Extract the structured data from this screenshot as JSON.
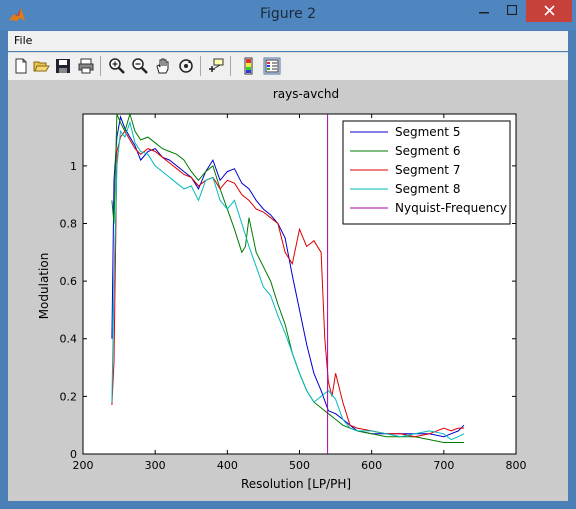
{
  "window": {
    "title": "Figure 2",
    "minimize_icon": "minimize-icon",
    "maximize_icon": "maximize-icon",
    "close_icon": "close-icon"
  },
  "menu": {
    "file": "File"
  },
  "toolbar": {
    "icons": [
      "new-figure-icon",
      "open-file-icon",
      "save-icon",
      "print-icon",
      "zoom-in-icon",
      "zoom-out-icon",
      "pan-hand-icon",
      "rotate-3d-icon",
      "data-cursor-icon",
      "colorbar-icon",
      "legend-icon"
    ]
  },
  "chart_data": {
    "type": "line",
    "title": "rays-avchd",
    "xlabel": "Resolution [LP/PH]",
    "ylabel": "Modulation",
    "xlim": [
      200,
      800
    ],
    "ylim": [
      0,
      1.18
    ],
    "xticks": [
      200,
      300,
      400,
      500,
      600,
      700,
      800
    ],
    "yticks": [
      0,
      0.2,
      0.4,
      0.6,
      0.8,
      1
    ],
    "ytick_labels": [
      "0",
      "0.2",
      "0.4",
      "0.6",
      "0.8",
      "1"
    ],
    "grid": false,
    "legend_position": "top-right",
    "series": [
      {
        "name": "Segment 5",
        "color": "#0000cc",
        "x": [
          240,
          243,
          247,
          252,
          258,
          265,
          272,
          280,
          290,
          300,
          310,
          320,
          330,
          340,
          350,
          360,
          370,
          380,
          390,
          400,
          410,
          420,
          430,
          440,
          450,
          460,
          470,
          480,
          490,
          500,
          510,
          520,
          530,
          540,
          550,
          560,
          570,
          580,
          600,
          620,
          640,
          660,
          680,
          700,
          710,
          720,
          728
        ],
        "y": [
          0.4,
          0.95,
          1.1,
          1.17,
          1.13,
          1.1,
          1.07,
          1.02,
          1.05,
          1.06,
          1.03,
          1.02,
          1.0,
          0.98,
          0.96,
          0.92,
          0.98,
          1.02,
          0.95,
          0.98,
          0.99,
          0.94,
          0.92,
          0.88,
          0.85,
          0.83,
          0.8,
          0.75,
          0.62,
          0.5,
          0.38,
          0.28,
          0.22,
          0.15,
          0.14,
          0.12,
          0.1,
          0.08,
          0.07,
          0.07,
          0.07,
          0.07,
          0.07,
          0.06,
          0.07,
          0.08,
          0.1
        ]
      },
      {
        "name": "Segment 6",
        "color": "#007a00",
        "x": [
          240,
          243,
          247,
          252,
          258,
          265,
          272,
          280,
          290,
          300,
          310,
          320,
          330,
          340,
          350,
          360,
          370,
          380,
          390,
          400,
          410,
          420,
          425,
          430,
          440,
          450,
          460,
          470,
          480,
          490,
          500,
          510,
          520,
          530,
          540,
          550,
          560,
          570,
          580,
          600,
          620,
          640,
          660,
          680,
          700,
          710,
          720,
          728
        ],
        "y": [
          0.88,
          0.8,
          1.2,
          1.15,
          1.12,
          1.18,
          1.12,
          1.09,
          1.1,
          1.08,
          1.06,
          1.05,
          1.04,
          1.02,
          0.98,
          0.95,
          0.98,
          1.0,
          0.92,
          0.85,
          0.78,
          0.7,
          0.72,
          0.82,
          0.7,
          0.65,
          0.6,
          0.52,
          0.45,
          0.35,
          0.28,
          0.22,
          0.18,
          0.16,
          0.14,
          0.12,
          0.1,
          0.09,
          0.08,
          0.07,
          0.06,
          0.06,
          0.06,
          0.05,
          0.04,
          0.04,
          0.04,
          0.04
        ]
      },
      {
        "name": "Segment 7",
        "color": "#dd0000",
        "x": [
          240,
          243,
          247,
          252,
          258,
          265,
          272,
          280,
          290,
          300,
          310,
          320,
          330,
          340,
          350,
          360,
          370,
          380,
          390,
          400,
          410,
          420,
          430,
          440,
          450,
          460,
          470,
          480,
          490,
          500,
          510,
          520,
          530,
          535,
          540,
          545,
          550,
          560,
          570,
          580,
          600,
          620,
          640,
          660,
          680,
          700,
          710,
          720,
          728
        ],
        "y": [
          0.17,
          0.32,
          1.05,
          1.1,
          1.12,
          1.09,
          1.06,
          1.04,
          1.06,
          1.05,
          1.03,
          1.01,
          0.99,
          0.97,
          0.96,
          0.93,
          0.95,
          0.96,
          0.92,
          0.95,
          0.94,
          0.9,
          0.88,
          0.85,
          0.84,
          0.82,
          0.8,
          0.7,
          0.66,
          0.78,
          0.72,
          0.74,
          0.7,
          0.4,
          0.25,
          0.2,
          0.28,
          0.18,
          0.1,
          0.09,
          0.08,
          0.07,
          0.07,
          0.06,
          0.07,
          0.09,
          0.08,
          0.09,
          0.09
        ]
      },
      {
        "name": "Segment 8",
        "color": "#00bbbb",
        "x": [
          240,
          243,
          247,
          252,
          258,
          265,
          272,
          280,
          290,
          300,
          310,
          320,
          330,
          340,
          350,
          360,
          370,
          380,
          390,
          400,
          410,
          420,
          430,
          440,
          450,
          460,
          470,
          480,
          490,
          500,
          510,
          520,
          530,
          540,
          550,
          560,
          570,
          580,
          600,
          620,
          640,
          660,
          680,
          700,
          710,
          720,
          728
        ],
        "y": [
          0.18,
          0.6,
          1.0,
          1.12,
          1.1,
          1.15,
          1.08,
          1.05,
          1.04,
          1.0,
          0.98,
          0.96,
          0.94,
          0.92,
          0.93,
          0.88,
          0.95,
          0.96,
          0.88,
          0.85,
          0.88,
          0.8,
          0.72,
          0.65,
          0.58,
          0.55,
          0.48,
          0.42,
          0.35,
          0.28,
          0.22,
          0.18,
          0.2,
          0.22,
          0.19,
          0.12,
          0.09,
          0.08,
          0.08,
          0.07,
          0.06,
          0.07,
          0.08,
          0.07,
          0.05,
          0.06,
          0.07
        ]
      },
      {
        "name": "Nyquist-Frequency",
        "color": "#aa00aa",
        "x": [
          539,
          539
        ],
        "y": [
          0,
          1.2
        ]
      }
    ]
  }
}
